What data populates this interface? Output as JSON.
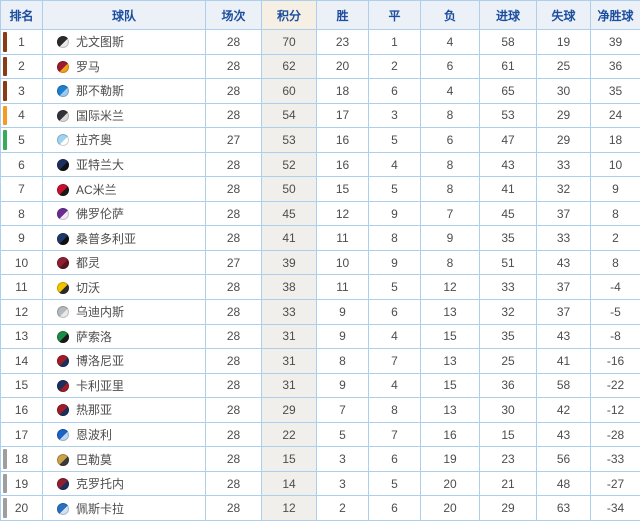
{
  "colors": {
    "header_bg": "#ecf1f8",
    "header_text": "#1d4e9e",
    "points_header_bg": "#f6efe4",
    "points_col_bg": "#f0efec",
    "grid_border": "#aecfec",
    "cell_text": "#4d4d4d"
  },
  "table": {
    "columns": [
      {
        "key": "rank",
        "label": "排名"
      },
      {
        "key": "team",
        "label": "球队"
      },
      {
        "key": "played",
        "label": "场次"
      },
      {
        "key": "points",
        "label": "积分"
      },
      {
        "key": "win",
        "label": "胜"
      },
      {
        "key": "draw",
        "label": "平"
      },
      {
        "key": "loss",
        "label": "负"
      },
      {
        "key": "gf",
        "label": "进球"
      },
      {
        "key": "ga",
        "label": "失球"
      },
      {
        "key": "gd",
        "label": "净胜球"
      }
    ],
    "zone_colors": {
      "champions": "#8a3b12",
      "champions_playoff": "#f59a23",
      "europa": "#35ad56",
      "relegation": "#9e9e9e"
    },
    "rows": [
      {
        "rank": 1,
        "team": "尤文图斯",
        "badge_icon": "juventus-badge-icon",
        "badge_colors": [
          "#2b2b2b",
          "#e9e9e9"
        ],
        "zone": "champions",
        "played": 28,
        "points": 70,
        "win": 23,
        "draw": 1,
        "loss": 4,
        "gf": 58,
        "ga": 19,
        "gd": 39
      },
      {
        "rank": 2,
        "team": "罗马",
        "badge_icon": "roma-badge-icon",
        "badge_colors": [
          "#9b1b30",
          "#f3a11b"
        ],
        "zone": "champions",
        "played": 28,
        "points": 62,
        "win": 20,
        "draw": 2,
        "loss": 6,
        "gf": 61,
        "ga": 25,
        "gd": 36
      },
      {
        "rank": 3,
        "team": "那不勒斯",
        "badge_icon": "napoli-badge-icon",
        "badge_colors": [
          "#1e7fd0",
          "#9cc9ef"
        ],
        "zone": "champions",
        "played": 28,
        "points": 60,
        "win": 18,
        "draw": 6,
        "loss": 4,
        "gf": 65,
        "ga": 30,
        "gd": 35
      },
      {
        "rank": 4,
        "team": "国际米兰",
        "badge_icon": "inter-badge-icon",
        "badge_colors": [
          "#32323a",
          "#d9d9d9"
        ],
        "zone": "champions_playoff",
        "played": 28,
        "points": 54,
        "win": 17,
        "draw": 3,
        "loss": 8,
        "gf": 53,
        "ga": 29,
        "gd": 24
      },
      {
        "rank": 5,
        "team": "拉齐奥",
        "badge_icon": "lazio-badge-icon",
        "badge_colors": [
          "#9fd3f0",
          "#ffffff"
        ],
        "zone": "europa",
        "played": 27,
        "points": 53,
        "win": 16,
        "draw": 5,
        "loss": 6,
        "gf": 47,
        "ga": 29,
        "gd": 18
      },
      {
        "rank": 6,
        "team": "亚特兰大",
        "badge_icon": "atalanta-badge-icon",
        "badge_colors": [
          "#1c2f5e",
          "#111111"
        ],
        "zone": "",
        "played": 28,
        "points": 52,
        "win": 16,
        "draw": 4,
        "loss": 8,
        "gf": 43,
        "ga": 33,
        "gd": 10
      },
      {
        "rank": 7,
        "team": "AC米兰",
        "badge_icon": "milan-badge-icon",
        "badge_colors": [
          "#c8102e",
          "#1a1a1a"
        ],
        "zone": "",
        "played": 28,
        "points": 50,
        "win": 15,
        "draw": 5,
        "loss": 8,
        "gf": 41,
        "ga": 32,
        "gd": 9
      },
      {
        "rank": 8,
        "team": "佛罗伦萨",
        "badge_icon": "fiorentina-badge-icon",
        "badge_colors": [
          "#6a2c91",
          "#f2e9f7"
        ],
        "zone": "",
        "played": 28,
        "points": 45,
        "win": 12,
        "draw": 9,
        "loss": 7,
        "gf": 45,
        "ga": 37,
        "gd": 8
      },
      {
        "rank": 9,
        "team": "桑普多利亚",
        "badge_icon": "sampdoria-badge-icon",
        "badge_colors": [
          "#1b3a6b",
          "#101010"
        ],
        "zone": "",
        "played": 28,
        "points": 41,
        "win": 11,
        "draw": 8,
        "loss": 9,
        "gf": 35,
        "ga": 33,
        "gd": 2
      },
      {
        "rank": 10,
        "team": "都灵",
        "badge_icon": "torino-badge-icon",
        "badge_colors": [
          "#8e1f2f",
          "#5c1220"
        ],
        "zone": "",
        "played": 27,
        "points": 39,
        "win": 10,
        "draw": 9,
        "loss": 8,
        "gf": 51,
        "ga": 43,
        "gd": 8
      },
      {
        "rank": 11,
        "team": "切沃",
        "badge_icon": "chievo-badge-icon",
        "badge_colors": [
          "#f2c500",
          "#2b2b2b"
        ],
        "zone": "",
        "played": 28,
        "points": 38,
        "win": 11,
        "draw": 5,
        "loss": 12,
        "gf": 33,
        "ga": 37,
        "gd": -4
      },
      {
        "rank": 12,
        "team": "乌迪内斯",
        "badge_icon": "udinese-badge-icon",
        "badge_colors": [
          "#b3b9bf",
          "#e8e8e8"
        ],
        "zone": "",
        "played": 28,
        "points": 33,
        "win": 9,
        "draw": 6,
        "loss": 13,
        "gf": 32,
        "ga": 37,
        "gd": -5
      },
      {
        "rank": 13,
        "team": "萨索洛",
        "badge_icon": "sassuolo-badge-icon",
        "badge_colors": [
          "#1d8a45",
          "#1a1a1a"
        ],
        "zone": "",
        "played": 28,
        "points": 31,
        "win": 9,
        "draw": 4,
        "loss": 15,
        "gf": 35,
        "ga": 43,
        "gd": -8
      },
      {
        "rank": 14,
        "team": "博洛尼亚",
        "badge_icon": "bologna-badge-icon",
        "badge_colors": [
          "#a21c26",
          "#1c2f5e"
        ],
        "zone": "",
        "played": 28,
        "points": 31,
        "win": 8,
        "draw": 7,
        "loss": 13,
        "gf": 25,
        "ga": 41,
        "gd": -16
      },
      {
        "rank": 15,
        "team": "卡利亚里",
        "badge_icon": "cagliari-badge-icon",
        "badge_colors": [
          "#1c2f5e",
          "#a21c26"
        ],
        "zone": "",
        "played": 28,
        "points": 31,
        "win": 9,
        "draw": 4,
        "loss": 15,
        "gf": 36,
        "ga": 58,
        "gd": -22
      },
      {
        "rank": 16,
        "team": "热那亚",
        "badge_icon": "genoa-badge-icon",
        "badge_colors": [
          "#a21c26",
          "#1c2f5e"
        ],
        "zone": "",
        "played": 28,
        "points": 29,
        "win": 7,
        "draw": 8,
        "loss": 13,
        "gf": 30,
        "ga": 42,
        "gd": -12
      },
      {
        "rank": 17,
        "team": "恩波利",
        "badge_icon": "empoli-badge-icon",
        "badge_colors": [
          "#1c63c8",
          "#bcd7f2"
        ],
        "zone": "",
        "played": 28,
        "points": 22,
        "win": 5,
        "draw": 7,
        "loss": 16,
        "gf": 15,
        "ga": 43,
        "gd": -28
      },
      {
        "rank": 18,
        "team": "巴勒莫",
        "badge_icon": "palermo-badge-icon",
        "badge_colors": [
          "#caa24a",
          "#3a3a3a"
        ],
        "zone": "relegation",
        "played": 28,
        "points": 15,
        "win": 3,
        "draw": 6,
        "loss": 19,
        "gf": 23,
        "ga": 56,
        "gd": -33
      },
      {
        "rank": 19,
        "team": "克罗托内",
        "badge_icon": "crotone-badge-icon",
        "badge_colors": [
          "#8e1f2f",
          "#1c2f5e"
        ],
        "zone": "relegation",
        "played": 28,
        "points": 14,
        "win": 3,
        "draw": 5,
        "loss": 20,
        "gf": 21,
        "ga": 48,
        "gd": -27
      },
      {
        "rank": 20,
        "team": "佩斯卡拉",
        "badge_icon": "pescara-badge-icon",
        "badge_colors": [
          "#2a6fc0",
          "#cfe3f5"
        ],
        "zone": "relegation",
        "played": 28,
        "points": 12,
        "win": 2,
        "draw": 6,
        "loss": 20,
        "gf": 29,
        "ga": 63,
        "gd": -34
      }
    ]
  }
}
